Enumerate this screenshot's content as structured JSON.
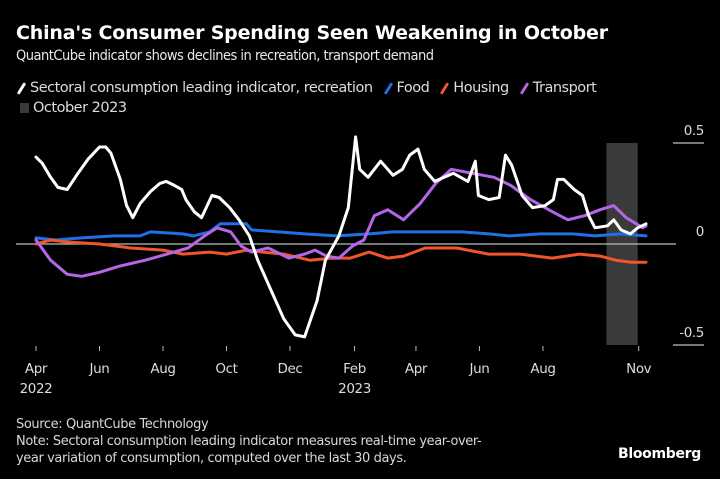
{
  "title": "China's Consumer Spending Seen Weakening in October",
  "subtitle": "QuantCube indicator shows declines in recreation, transport demand",
  "legend": [
    {
      "label": "Sectoral consumption leading indicator, recreation",
      "color": "#ffffff",
      "icon": "line-swatch"
    },
    {
      "label": "Food",
      "color": "#1f6fe6",
      "icon": "line-swatch"
    },
    {
      "label": "Housing",
      "color": "#f0562a",
      "icon": "line-swatch"
    },
    {
      "label": "Transport",
      "color": "#b566e8",
      "icon": "line-swatch"
    },
    {
      "label": "October 2023",
      "color": "#3a3a3a",
      "icon": "box-swatch"
    }
  ],
  "footer": {
    "source": "Source: QuantCube Technology",
    "note_line1": "Note: Sectoral consumption leading indicator measures real-time year-over-",
    "note_line2": "year variation of consumption, computed over the last 30 days.",
    "brand": "Bloomberg"
  },
  "chart_data": {
    "type": "line",
    "title": "China's Consumer Spending Seen Weakening in October",
    "subtitle": "QuantCube indicator shows declines in recreation, transport demand",
    "xlabel": "",
    "ylabel": "",
    "x_range": [
      "2022-04-01",
      "2023-11-10"
    ],
    "ylim": [
      -0.5,
      0.5
    ],
    "y_ticks": [
      0.5,
      0,
      -0.5
    ],
    "y_tick_labels": [
      "0.5",
      "0",
      "-0.5"
    ],
    "y_axis_position": "right",
    "x_ticks": [
      {
        "date": "2022-04-01",
        "label": "Apr",
        "year": "2022"
      },
      {
        "date": "2022-06-01",
        "label": "Jun",
        "year": ""
      },
      {
        "date": "2022-08-01",
        "label": "Aug",
        "year": ""
      },
      {
        "date": "2022-10-01",
        "label": "Oct",
        "year": ""
      },
      {
        "date": "2022-12-01",
        "label": "Dec",
        "year": ""
      },
      {
        "date": "2023-02-01",
        "label": "Feb",
        "year": "2023"
      },
      {
        "date": "2023-04-01",
        "label": "Apr",
        "year": ""
      },
      {
        "date": "2023-06-01",
        "label": "Jun",
        "year": ""
      },
      {
        "date": "2023-08-01",
        "label": "Aug",
        "year": ""
      },
      {
        "date": "2023-11-01",
        "label": "Nov",
        "year": ""
      }
    ],
    "shaded_region": {
      "label": "October 2023",
      "start": "2023-10-01",
      "end": "2023-10-31",
      "color": "#3a3a3a"
    },
    "zero_line": true,
    "grid": false,
    "legend_position": "top-left",
    "series": [
      {
        "name": "Sectoral consumption leading indicator, recreation",
        "color": "#ffffff",
        "points": [
          [
            "2022-04-01",
            0.43
          ],
          [
            "2022-04-07",
            0.4
          ],
          [
            "2022-04-15",
            0.33
          ],
          [
            "2022-04-22",
            0.28
          ],
          [
            "2022-05-01",
            0.27
          ],
          [
            "2022-05-10",
            0.34
          ],
          [
            "2022-05-21",
            0.42
          ],
          [
            "2022-06-01",
            0.48
          ],
          [
            "2022-06-07",
            0.48
          ],
          [
            "2022-06-12",
            0.45
          ],
          [
            "2022-06-21",
            0.32
          ],
          [
            "2022-06-27",
            0.19
          ],
          [
            "2022-07-03",
            0.13
          ],
          [
            "2022-07-10",
            0.2
          ],
          [
            "2022-07-20",
            0.26
          ],
          [
            "2022-07-29",
            0.3
          ],
          [
            "2022-08-04",
            0.31
          ],
          [
            "2022-08-12",
            0.29
          ],
          [
            "2022-08-19",
            0.27
          ],
          [
            "2022-08-23",
            0.22
          ],
          [
            "2022-08-31",
            0.16
          ],
          [
            "2022-09-07",
            0.13
          ],
          [
            "2022-09-17",
            0.24
          ],
          [
            "2022-09-24",
            0.23
          ],
          [
            "2022-10-04",
            0.18
          ],
          [
            "2022-10-13",
            0.12
          ],
          [
            "2022-10-23",
            0.04
          ],
          [
            "2022-10-31",
            -0.08
          ],
          [
            "2022-11-12",
            -0.22
          ],
          [
            "2022-11-25",
            -0.37
          ],
          [
            "2022-12-06",
            -0.45
          ],
          [
            "2022-12-15",
            -0.46
          ],
          [
            "2022-12-27",
            -0.28
          ],
          [
            "2023-01-04",
            -0.08
          ],
          [
            "2023-01-17",
            0.04
          ],
          [
            "2023-01-26",
            0.18
          ],
          [
            "2023-02-02",
            0.53
          ],
          [
            "2023-02-06",
            0.37
          ],
          [
            "2023-02-14",
            0.33
          ],
          [
            "2023-02-26",
            0.41
          ],
          [
            "2023-03-10",
            0.34
          ],
          [
            "2023-03-19",
            0.37
          ],
          [
            "2023-03-26",
            0.44
          ],
          [
            "2023-04-03",
            0.47
          ],
          [
            "2023-04-09",
            0.37
          ],
          [
            "2023-04-19",
            0.31
          ],
          [
            "2023-05-07",
            0.35
          ],
          [
            "2023-05-21",
            0.31
          ],
          [
            "2023-05-28",
            0.41
          ],
          [
            "2023-05-31",
            0.24
          ],
          [
            "2023-06-10",
            0.22
          ],
          [
            "2023-06-20",
            0.23
          ],
          [
            "2023-06-26",
            0.44
          ],
          [
            "2023-07-02",
            0.39
          ],
          [
            "2023-07-12",
            0.24
          ],
          [
            "2023-07-22",
            0.18
          ],
          [
            "2023-08-03",
            0.19
          ],
          [
            "2023-08-11",
            0.22
          ],
          [
            "2023-08-15",
            0.32
          ],
          [
            "2023-08-21",
            0.32
          ],
          [
            "2023-08-31",
            0.27
          ],
          [
            "2023-09-08",
            0.24
          ],
          [
            "2023-09-14",
            0.14
          ],
          [
            "2023-09-20",
            0.08
          ],
          [
            "2023-10-02",
            0.09
          ],
          [
            "2023-10-08",
            0.12
          ],
          [
            "2023-10-15",
            0.07
          ],
          [
            "2023-10-24",
            0.05
          ],
          [
            "2023-10-31",
            0.08
          ],
          [
            "2023-11-08",
            0.1
          ]
        ]
      },
      {
        "name": "Food",
        "color": "#1f6fe6",
        "points": [
          [
            "2022-04-01",
            0.03
          ],
          [
            "2022-04-20",
            0.02
          ],
          [
            "2022-05-15",
            0.03
          ],
          [
            "2022-06-15",
            0.04
          ],
          [
            "2022-07-10",
            0.04
          ],
          [
            "2022-07-20",
            0.06
          ],
          [
            "2022-08-20",
            0.05
          ],
          [
            "2022-08-30",
            0.04
          ],
          [
            "2022-09-15",
            0.06
          ],
          [
            "2022-09-25",
            0.1
          ],
          [
            "2022-10-20",
            0.1
          ],
          [
            "2022-10-25",
            0.07
          ],
          [
            "2022-11-20",
            0.06
          ],
          [
            "2022-12-15",
            0.05
          ],
          [
            "2023-01-15",
            0.04
          ],
          [
            "2023-02-15",
            0.05
          ],
          [
            "2023-03-10",
            0.06
          ],
          [
            "2023-04-15",
            0.06
          ],
          [
            "2023-05-15",
            0.06
          ],
          [
            "2023-06-10",
            0.05
          ],
          [
            "2023-06-30",
            0.04
          ],
          [
            "2023-07-30",
            0.05
          ],
          [
            "2023-08-30",
            0.05
          ],
          [
            "2023-09-20",
            0.04
          ],
          [
            "2023-10-15",
            0.05
          ],
          [
            "2023-11-08",
            0.04
          ]
        ]
      },
      {
        "name": "Housing",
        "color": "#f0562a",
        "points": [
          [
            "2022-04-01",
            0.0
          ],
          [
            "2022-04-15",
            0.02
          ],
          [
            "2022-05-01",
            0.01
          ],
          [
            "2022-06-01",
            0.0
          ],
          [
            "2022-07-01",
            -0.02
          ],
          [
            "2022-08-01",
            -0.03
          ],
          [
            "2022-08-20",
            -0.05
          ],
          [
            "2022-09-15",
            -0.04
          ],
          [
            "2022-10-01",
            -0.05
          ],
          [
            "2022-10-20",
            -0.03
          ],
          [
            "2022-11-05",
            -0.04
          ],
          [
            "2022-11-25",
            -0.05
          ],
          [
            "2022-12-20",
            -0.08
          ],
          [
            "2023-01-10",
            -0.07
          ],
          [
            "2023-01-28",
            -0.07
          ],
          [
            "2023-02-15",
            -0.04
          ],
          [
            "2023-03-05",
            -0.07
          ],
          [
            "2023-03-20",
            -0.06
          ],
          [
            "2023-04-10",
            -0.02
          ],
          [
            "2023-05-10",
            -0.02
          ],
          [
            "2023-06-10",
            -0.05
          ],
          [
            "2023-07-10",
            -0.05
          ],
          [
            "2023-08-10",
            -0.07
          ],
          [
            "2023-09-05",
            -0.05
          ],
          [
            "2023-09-25",
            -0.06
          ],
          [
            "2023-10-10",
            -0.08
          ],
          [
            "2023-10-25",
            -0.09
          ],
          [
            "2023-11-08",
            -0.09
          ]
        ]
      },
      {
        "name": "Transport",
        "color": "#b566e8",
        "points": [
          [
            "2022-04-01",
            0.02
          ],
          [
            "2022-04-15",
            -0.08
          ],
          [
            "2022-05-01",
            -0.15
          ],
          [
            "2022-05-15",
            -0.16
          ],
          [
            "2022-06-01",
            -0.14
          ],
          [
            "2022-06-20",
            -0.11
          ],
          [
            "2022-07-15",
            -0.08
          ],
          [
            "2022-08-05",
            -0.05
          ],
          [
            "2022-08-25",
            -0.02
          ],
          [
            "2022-09-10",
            0.04
          ],
          [
            "2022-09-22",
            0.08
          ],
          [
            "2022-10-05",
            0.06
          ],
          [
            "2022-10-15",
            -0.01
          ],
          [
            "2022-10-25",
            -0.04
          ],
          [
            "2022-11-10",
            -0.02
          ],
          [
            "2022-11-30",
            -0.07
          ],
          [
            "2022-12-15",
            -0.05
          ],
          [
            "2022-12-25",
            -0.03
          ],
          [
            "2023-01-05",
            -0.06
          ],
          [
            "2023-01-17",
            -0.07
          ],
          [
            "2023-01-30",
            -0.01
          ],
          [
            "2023-02-10",
            0.02
          ],
          [
            "2023-02-20",
            0.14
          ],
          [
            "2023-03-05",
            0.17
          ],
          [
            "2023-03-20",
            0.12
          ],
          [
            "2023-04-05",
            0.2
          ],
          [
            "2023-04-20",
            0.3
          ],
          [
            "2023-05-05",
            0.37
          ],
          [
            "2023-05-25",
            0.35
          ],
          [
            "2023-06-15",
            0.33
          ],
          [
            "2023-07-01",
            0.29
          ],
          [
            "2023-07-20",
            0.22
          ],
          [
            "2023-08-10",
            0.16
          ],
          [
            "2023-08-25",
            0.12
          ],
          [
            "2023-09-10",
            0.14
          ],
          [
            "2023-09-25",
            0.17
          ],
          [
            "2023-10-08",
            0.19
          ],
          [
            "2023-10-20",
            0.13
          ],
          [
            "2023-11-05",
            0.08
          ],
          [
            "2023-11-08",
            0.09
          ]
        ]
      }
    ]
  }
}
